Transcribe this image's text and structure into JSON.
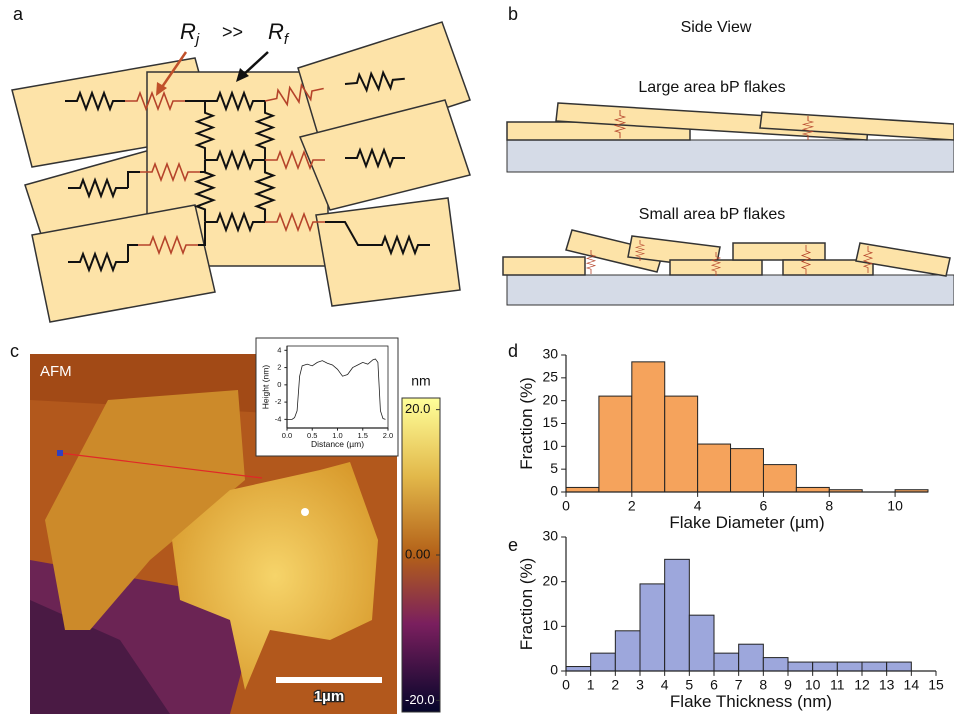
{
  "panel_labels": [
    "a",
    "b",
    "c",
    "d",
    "e"
  ],
  "circuit": {
    "rj": "R",
    "rj_sub": "j",
    "relation": ">>",
    "rf": "R",
    "rf_sub": "f"
  },
  "side_view": {
    "title": "Side View",
    "large": "Large area bP flakes",
    "small": "Small area bP flakes"
  },
  "afm": {
    "label": "AFM",
    "scale_bar": "1µm",
    "colorbar": {
      "unit": "nm",
      "lim": [
        -21.6,
        21.6
      ],
      "ticks": [
        {
          "value": 20,
          "label": "20.0"
        },
        {
          "value": 0,
          "label": "0.00"
        },
        {
          "value": -20,
          "label": "-20.0"
        }
      ]
    }
  },
  "chart_data": [
    {
      "type": "histogram",
      "xlabel": "Flake Diameter (µm)",
      "ylabel": "Fraction (%)",
      "color": "#f5a35c",
      "bins": [
        0,
        1,
        2,
        3,
        4,
        5,
        6,
        7,
        8,
        9,
        10,
        11
      ],
      "values": [
        1,
        21,
        28.5,
        21,
        10.5,
        9.5,
        6,
        1,
        0.5,
        0,
        0.5
      ],
      "xlim": [
        0,
        11
      ],
      "xticks": [
        0,
        2,
        4,
        6,
        8,
        10
      ],
      "ylim": [
        0,
        30
      ],
      "yticks": [
        0,
        5,
        10,
        15,
        20,
        25,
        30
      ]
    },
    {
      "type": "histogram",
      "xlabel": "Flake Thickness (nm)",
      "ylabel": "Fraction (%)",
      "color": "#9da7dc",
      "bins": [
        0,
        1,
        2,
        3,
        4,
        5,
        6,
        7,
        8,
        9,
        10,
        11,
        12,
        13,
        14
      ],
      "values": [
        1,
        4,
        9,
        19.5,
        25,
        12.5,
        4,
        6,
        3,
        2,
        2,
        2,
        2,
        2
      ],
      "xlim": [
        0,
        15
      ],
      "xticks": [
        0,
        1,
        2,
        3,
        4,
        5,
        6,
        7,
        8,
        9,
        10,
        11,
        12,
        13,
        14,
        15
      ],
      "ylim": [
        0,
        30
      ],
      "yticks": [
        0,
        10,
        20,
        30
      ]
    },
    {
      "type": "line",
      "xlabel": "Distance (µm)",
      "ylabel": "Height (nm)",
      "color": "#222222",
      "x": [
        0,
        0.1,
        0.15,
        0.2,
        0.25,
        0.3,
        0.4,
        0.5,
        0.6,
        0.7,
        0.8,
        0.9,
        1.0,
        1.1,
        1.2,
        1.3,
        1.4,
        1.5,
        1.6,
        1.7,
        1.75,
        1.8,
        1.85,
        1.9,
        1.95
      ],
      "values": [
        -4,
        -4,
        -3.8,
        -3,
        1,
        2.2,
        2.4,
        2.2,
        2.6,
        2.8,
        2.5,
        2.3,
        1.8,
        1.0,
        1.2,
        2.0,
        2.3,
        2.6,
        2.4,
        2.9,
        3.0,
        2.6,
        -3,
        -3.9,
        -4
      ],
      "xlim": [
        0,
        2
      ],
      "xticks": [
        {
          "value": 0,
          "label": "0.0"
        },
        {
          "value": 0.5,
          "label": "0.5"
        },
        {
          "value": 1,
          "label": "1.0"
        },
        {
          "value": 1.5,
          "label": "1.5"
        },
        {
          "value": 2,
          "label": "2.0"
        }
      ],
      "ylim": [
        -5,
        4.5
      ],
      "yticks": [
        4,
        2,
        0,
        -2,
        -4
      ]
    }
  ]
}
